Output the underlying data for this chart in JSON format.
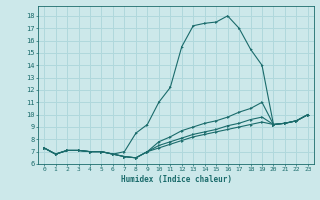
{
  "xlabel": "Humidex (Indice chaleur)",
  "xlim": [
    -0.5,
    23.5
  ],
  "ylim": [
    6,
    18.8
  ],
  "xticks": [
    0,
    1,
    2,
    3,
    4,
    5,
    6,
    7,
    8,
    9,
    10,
    11,
    12,
    13,
    14,
    15,
    16,
    17,
    18,
    19,
    20,
    21,
    22,
    23
  ],
  "yticks": [
    6,
    7,
    8,
    9,
    10,
    11,
    12,
    13,
    14,
    15,
    16,
    17,
    18
  ],
  "bg_color": "#cce8ea",
  "grid_color": "#b0d8dc",
  "line_color": "#1a6b6b",
  "lines": [
    {
      "x": [
        0,
        1,
        2,
        3,
        4,
        5,
        6,
        7,
        8,
        9,
        10,
        11,
        12,
        13,
        14,
        15,
        16,
        17,
        18,
        19,
        20,
        21,
        22,
        23
      ],
      "y": [
        7.3,
        6.8,
        7.1,
        7.1,
        7.0,
        7.0,
        6.8,
        7.0,
        8.5,
        9.2,
        11.0,
        12.2,
        15.5,
        17.2,
        17.4,
        17.5,
        18.0,
        17.0,
        15.3,
        14.0,
        9.2,
        9.3,
        9.5,
        10.0
      ]
    },
    {
      "x": [
        0,
        1,
        2,
        3,
        4,
        5,
        6,
        7,
        8,
        9,
        10,
        11,
        12,
        13,
        14,
        15,
        16,
        17,
        18,
        19,
        20,
        21,
        22,
        23
      ],
      "y": [
        7.3,
        6.8,
        7.1,
        7.1,
        7.0,
        7.0,
        6.8,
        6.6,
        6.5,
        7.0,
        7.8,
        8.2,
        8.7,
        9.0,
        9.3,
        9.5,
        9.8,
        10.2,
        10.5,
        11.0,
        9.2,
        9.3,
        9.5,
        10.0
      ]
    },
    {
      "x": [
        0,
        1,
        2,
        3,
        4,
        5,
        6,
        7,
        8,
        9,
        10,
        11,
        12,
        13,
        14,
        15,
        16,
        17,
        18,
        19,
        20,
        21,
        22,
        23
      ],
      "y": [
        7.3,
        6.8,
        7.1,
        7.1,
        7.0,
        7.0,
        6.8,
        6.6,
        6.5,
        7.0,
        7.5,
        7.8,
        8.1,
        8.4,
        8.6,
        8.8,
        9.1,
        9.3,
        9.6,
        9.8,
        9.2,
        9.3,
        9.5,
        10.0
      ]
    },
    {
      "x": [
        0,
        1,
        2,
        3,
        4,
        5,
        6,
        7,
        8,
        9,
        10,
        11,
        12,
        13,
        14,
        15,
        16,
        17,
        18,
        19,
        20,
        21,
        22,
        23
      ],
      "y": [
        7.3,
        6.8,
        7.1,
        7.1,
        7.0,
        7.0,
        6.8,
        6.6,
        6.5,
        7.0,
        7.3,
        7.6,
        7.9,
        8.2,
        8.4,
        8.6,
        8.8,
        9.0,
        9.2,
        9.4,
        9.2,
        9.3,
        9.5,
        10.0
      ]
    }
  ]
}
